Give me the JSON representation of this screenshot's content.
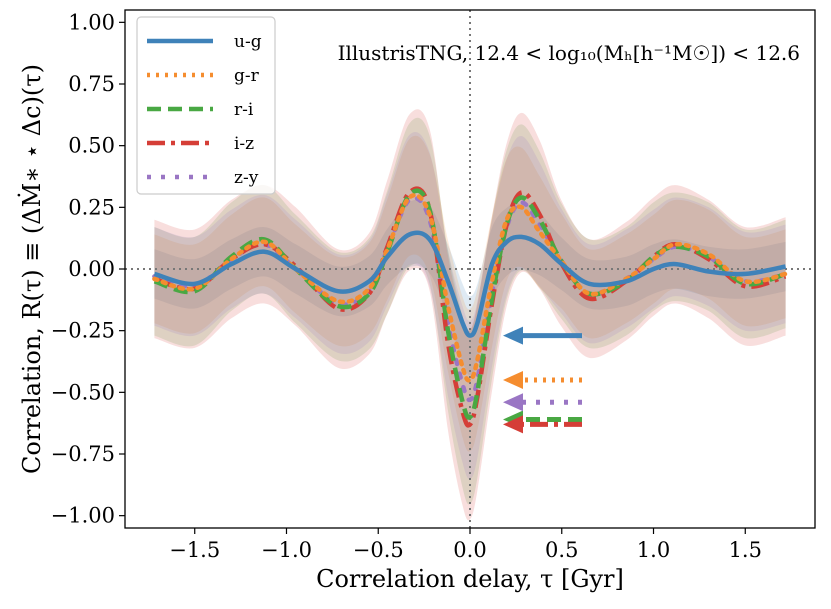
{
  "chart_data": {
    "type": "line",
    "title": "",
    "xlabel": "Correlation delay, τ [Gyr]",
    "ylabel": "Correlation, R(τ) ≡ (ΔṀ∗ ⋆ Δc)(τ)",
    "annotation": "IllustrisTNG, 12.4 < log₁₀(Mₕ[h⁻¹M☉]) < 12.6",
    "xlim": [
      -1.88,
      1.88
    ],
    "ylim": [
      -1.05,
      1.05
    ],
    "xticks": [
      -1.5,
      -1.0,
      -0.5,
      0.0,
      0.5,
      1.0,
      1.5
    ],
    "xtick_labels": [
      "−1.5",
      "−1.0",
      "−0.5",
      "0.0",
      "0.5",
      "1.0",
      "1.5"
    ],
    "yticks": [
      -1.0,
      -0.75,
      -0.5,
      -0.25,
      0.0,
      0.25,
      0.5,
      0.75,
      1.0
    ],
    "ytick_labels": [
      "−1.00",
      "−0.75",
      "−0.50",
      "−0.25",
      "0.00",
      "0.25",
      "0.50",
      "0.75",
      "1.00"
    ],
    "legend_position": "top-left",
    "reference_lines": {
      "horizontal_y": 0.0,
      "vertical_x": 0.0
    },
    "x": [
      -1.72,
      -1.5,
      -1.3,
      -1.12,
      -0.95,
      -0.72,
      -0.55,
      -0.45,
      -0.33,
      -0.22,
      -0.12,
      -0.04,
      0.0,
      0.04,
      0.12,
      0.2,
      0.28,
      0.38,
      0.5,
      0.65,
      0.85,
      1.0,
      1.12,
      1.3,
      1.5,
      1.72
    ],
    "series": [
      {
        "name": "u-g",
        "color": "#3f82b9",
        "dash": "solid",
        "values": [
          -0.02,
          -0.06,
          0.02,
          0.07,
          0.0,
          -0.09,
          -0.05,
          0.05,
          0.14,
          0.12,
          -0.05,
          -0.22,
          -0.27,
          -0.22,
          0.02,
          0.11,
          0.13,
          0.1,
          0.02,
          -0.06,
          -0.05,
          0.0,
          0.02,
          -0.01,
          -0.02,
          0.01
        ],
        "band": 0.1,
        "arrow_y": -0.27
      },
      {
        "name": "g-r",
        "color": "#f58d2f",
        "dash": "dotted",
        "values": [
          -0.04,
          -0.08,
          0.04,
          0.11,
          0.0,
          -0.13,
          -0.08,
          0.08,
          0.29,
          0.22,
          -0.15,
          -0.4,
          -0.45,
          -0.37,
          -0.05,
          0.2,
          0.25,
          0.15,
          0.03,
          -0.1,
          -0.04,
          0.04,
          0.1,
          0.06,
          -0.05,
          -0.02
        ],
        "band": 0.18,
        "arrow_y": -0.45
      },
      {
        "name": "r-i",
        "color": "#49a843",
        "dash": "dashed",
        "values": [
          -0.05,
          -0.09,
          0.05,
          0.12,
          0.0,
          -0.15,
          -0.1,
          0.07,
          0.3,
          0.24,
          -0.25,
          -0.54,
          -0.6,
          -0.5,
          -0.12,
          0.18,
          0.29,
          0.2,
          0.03,
          -0.1,
          -0.05,
          0.05,
          0.09,
          0.05,
          -0.06,
          -0.02
        ],
        "band": 0.22,
        "arrow_y": -0.61
      },
      {
        "name": "i-z",
        "color": "#d53e37",
        "dash": "dashdot",
        "values": [
          -0.04,
          -0.08,
          0.04,
          0.1,
          0.01,
          -0.16,
          -0.1,
          0.09,
          0.31,
          0.24,
          -0.3,
          -0.58,
          -0.63,
          -0.52,
          -0.14,
          0.18,
          0.31,
          0.22,
          0.02,
          -0.12,
          -0.05,
          0.05,
          0.1,
          0.04,
          -0.07,
          -0.03
        ],
        "band": 0.24,
        "arrow_y": -0.63
      },
      {
        "name": "z-y",
        "color": "#9a76c4",
        "dash": "loosedot",
        "values": [
          -0.03,
          -0.07,
          0.04,
          0.1,
          0.0,
          -0.14,
          -0.09,
          0.08,
          0.28,
          0.2,
          -0.22,
          -0.47,
          -0.53,
          -0.45,
          -0.1,
          0.17,
          0.27,
          0.18,
          0.03,
          -0.1,
          -0.04,
          0.04,
          0.09,
          0.05,
          -0.05,
          -0.02
        ],
        "band": 0.2,
        "arrow_y": -0.54
      }
    ]
  }
}
